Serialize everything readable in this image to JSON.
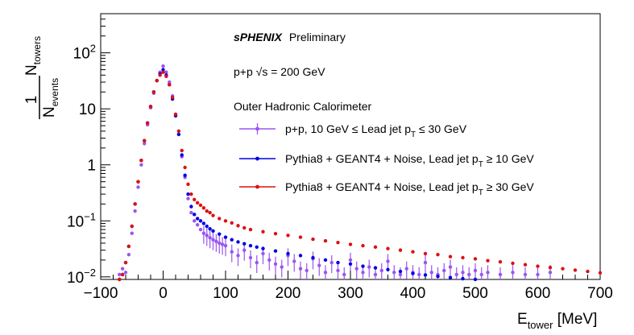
{
  "chart_data": {
    "type": "scatter",
    "title": "",
    "xlabel": "E_tower [MeV]",
    "ylabel": "1/N_events N_towers",
    "xlim": [
      -100,
      700
    ],
    "ylim": [
      0.009,
      500
    ],
    "yscale": "log",
    "grid": false,
    "legend_position": "top-right",
    "x_ticks": [
      -100,
      0,
      100,
      200,
      300,
      400,
      500,
      600,
      700
    ],
    "x_tick_labels": [
      "−100",
      "0",
      "100",
      "200",
      "300",
      "400",
      "500",
      "600",
      "700"
    ],
    "y_ticks": [
      0.01,
      0.1,
      1,
      10,
      100
    ],
    "y_tick_labels": [
      "10^-2",
      "10^-1",
      "1",
      "10",
      "10^2"
    ],
    "annotations": {
      "experiment_bold": "sPHENIX",
      "experiment_status": "Preliminary",
      "collision": "p+p  √s = 200 GeV",
      "detector": "Outer Hadronic Calorimeter"
    },
    "series": [
      {
        "name": "p+p, 10 GeV ≤ Lead jet p_T ≤ 30 GeV",
        "color": "#9a55f0",
        "marker": "circle-errorbar",
        "x": [
          -70,
          -65,
          -60,
          -55,
          -50,
          -45,
          -40,
          -35,
          -30,
          -25,
          -20,
          -15,
          -10,
          -5,
          0,
          5,
          10,
          15,
          20,
          25,
          30,
          35,
          40,
          45,
          50,
          55,
          60,
          65,
          70,
          75,
          80,
          85,
          90,
          95,
          100,
          110,
          120,
          130,
          140,
          150,
          160,
          170,
          180,
          190,
          200,
          210,
          220,
          230,
          240,
          250,
          260,
          270,
          280,
          290,
          300,
          310,
          320,
          330,
          340,
          350,
          360,
          370,
          380,
          390,
          400,
          410,
          420,
          430,
          440,
          450,
          460,
          470,
          480,
          490,
          500,
          510,
          520,
          540,
          560,
          580,
          600,
          620
        ],
        "y": [
          0.011,
          0.014,
          0.012,
          0.025,
          0.06,
          0.15,
          0.4,
          1.0,
          2.4,
          5.2,
          10.5,
          19,
          32,
          45,
          58,
          45,
          30,
          17,
          8,
          3.5,
          1.4,
          0.6,
          0.25,
          0.14,
          0.1,
          0.085,
          0.07,
          0.06,
          0.055,
          0.05,
          0.046,
          0.043,
          0.04,
          0.038,
          0.036,
          0.028,
          0.024,
          0.03,
          0.022,
          0.018,
          0.026,
          0.02,
          0.017,
          0.015,
          0.024,
          0.019,
          0.014,
          0.013,
          0.021,
          0.016,
          0.012,
          0.018,
          0.013,
          0.011,
          0.02,
          0.014,
          0.012,
          0.015,
          0.011,
          0.013,
          0.019,
          0.012,
          0.011,
          0.014,
          0.012,
          0.011,
          0.018,
          0.012,
          0.011,
          0.013,
          0.015,
          0.011,
          0.012,
          0.011,
          0.013,
          0.011,
          0.012,
          0.011,
          0.012,
          0.011,
          0.011,
          0.012
        ]
      },
      {
        "name": "Pythia8 + GEANT4 + Noise, Lead jet p_T ≥ 10 GeV",
        "color": "#0000e6",
        "marker": "circle",
        "x": [
          -70,
          -65,
          -60,
          -55,
          -50,
          -45,
          -40,
          -35,
          -30,
          -25,
          -20,
          -15,
          -10,
          -5,
          0,
          5,
          10,
          15,
          20,
          25,
          30,
          35,
          40,
          45,
          50,
          55,
          60,
          65,
          70,
          75,
          80,
          90,
          100,
          110,
          120,
          130,
          140,
          150,
          160,
          180,
          200,
          220,
          240,
          260,
          280,
          300,
          320,
          340,
          360,
          380,
          400,
          420,
          440,
          460,
          480,
          500,
          510
        ],
        "y": [
          0.009,
          0.011,
          0.018,
          0.035,
          0.08,
          0.2,
          0.5,
          1.2,
          2.7,
          5.6,
          11,
          20,
          32,
          42,
          50,
          40,
          27,
          15,
          7.5,
          3.5,
          1.5,
          0.65,
          0.3,
          0.18,
          0.13,
          0.11,
          0.1,
          0.09,
          0.08,
          0.072,
          0.066,
          0.058,
          0.051,
          0.046,
          0.042,
          0.039,
          0.036,
          0.034,
          0.032,
          0.029,
          0.026,
          0.024,
          0.022,
          0.02,
          0.018,
          0.017,
          0.0155,
          0.0145,
          0.0135,
          0.0125,
          0.0115,
          0.0108,
          0.0102,
          0.0097,
          0.0093,
          0.009,
          0.0089
        ]
      },
      {
        "name": "Pythia8 + GEANT4 + Noise, Lead jet p_T ≥ 30 GeV",
        "color": "#dd1111",
        "marker": "circle",
        "x": [
          -70,
          -65,
          -60,
          -55,
          -50,
          -45,
          -40,
          -35,
          -30,
          -25,
          -20,
          -15,
          -10,
          -5,
          0,
          5,
          10,
          15,
          20,
          25,
          30,
          35,
          40,
          45,
          50,
          55,
          60,
          65,
          70,
          75,
          80,
          90,
          100,
          110,
          120,
          130,
          140,
          160,
          180,
          200,
          220,
          240,
          260,
          280,
          300,
          320,
          340,
          360,
          380,
          400,
          420,
          440,
          460,
          480,
          500,
          520,
          540,
          560,
          580,
          600,
          620,
          640,
          660,
          680,
          700
        ],
        "y": [
          0.009,
          0.011,
          0.018,
          0.035,
          0.08,
          0.2,
          0.5,
          1.2,
          2.7,
          5.6,
          11,
          20,
          32,
          40,
          45,
          38,
          27,
          16,
          8,
          4,
          1.8,
          0.9,
          0.45,
          0.3,
          0.24,
          0.21,
          0.19,
          0.17,
          0.15,
          0.14,
          0.125,
          0.11,
          0.1,
          0.092,
          0.082,
          0.075,
          0.07,
          0.064,
          0.059,
          0.055,
          0.051,
          0.047,
          0.044,
          0.041,
          0.038,
          0.036,
          0.034,
          0.032,
          0.03,
          0.028,
          0.026,
          0.025,
          0.023,
          0.022,
          0.021,
          0.0195,
          0.0185,
          0.0175,
          0.0165,
          0.0155,
          0.0147,
          0.014,
          0.0132,
          0.0125,
          0.0118
        ]
      }
    ]
  }
}
